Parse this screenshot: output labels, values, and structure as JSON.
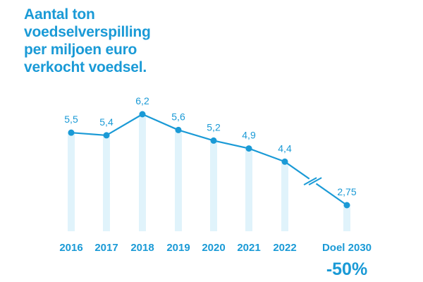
{
  "title_lines": [
    "Aantal ton",
    "voedselverspilling",
    "per miljoen euro",
    "verkocht voedsel."
  ],
  "colors": {
    "accent": "#1a9ad6",
    "bar": "#e0f3fb"
  },
  "chart_data": {
    "type": "line",
    "title": "Aantal ton voedselverspilling per miljoen euro verkocht voedsel.",
    "categories": [
      "2016",
      "2017",
      "2018",
      "2019",
      "2020",
      "2021",
      "2022",
      "Doel 2030"
    ],
    "values": [
      5.5,
      5.4,
      6.2,
      5.6,
      5.2,
      4.9,
      4.4,
      2.75
    ],
    "value_labels": [
      "5,5",
      "5,4",
      "6,2",
      "5,6",
      "5,2",
      "4,9",
      "4,4",
      "2,75"
    ],
    "target_change": "-50%",
    "axis_break_between": [
      "2022",
      "Doel 2030"
    ],
    "ylim": [
      0,
      6.2
    ],
    "grid": false,
    "legend": "none"
  }
}
